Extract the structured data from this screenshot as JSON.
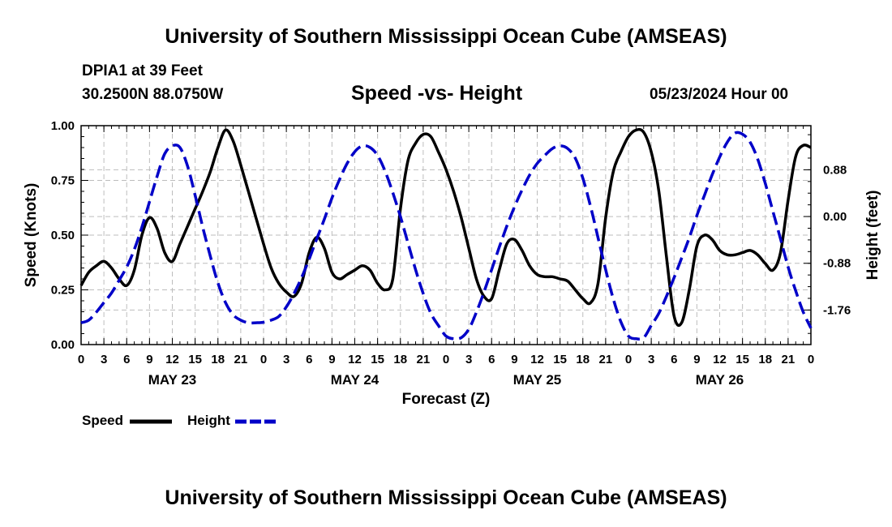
{
  "header": {
    "title": "University of Southern Mississippi Ocean Cube (AMSEAS)",
    "station": "DPIA1 at 39 Feet",
    "coords": "30.2500N  88.0750W",
    "subtitle": "Speed -vs- Height",
    "datetime": "05/23/2024 Hour 00"
  },
  "footer": {
    "title": "University of Southern Mississippi Ocean Cube (AMSEAS)"
  },
  "legend": {
    "speed_label": "Speed",
    "height_label": "Height"
  },
  "chart_data": {
    "type": "line",
    "title": "Speed -vs- Height",
    "xlabel": "Forecast (Z)",
    "ylabel": "Speed (Knots)",
    "y2label": "Height (feet)",
    "xlim": [
      0,
      96
    ],
    "ylim": [
      0,
      1.0
    ],
    "y2lim": [
      -2.41,
      1.71
    ],
    "x_tick_hours": [
      0,
      3,
      6,
      9,
      12,
      15,
      18,
      21,
      24,
      27,
      30,
      33,
      36,
      39,
      42,
      45,
      48,
      51,
      54,
      57,
      60,
      63,
      66,
      69,
      72,
      75,
      78,
      81,
      84,
      87,
      90,
      93,
      96
    ],
    "x_tick_labels": [
      "0",
      "3",
      "6",
      "9",
      "12",
      "15",
      "18",
      "21",
      "0",
      "3",
      "6",
      "9",
      "12",
      "15",
      "18",
      "21",
      "0",
      "3",
      "6",
      "9",
      "12",
      "15",
      "18",
      "21",
      "0",
      "3",
      "6",
      "9",
      "12",
      "15",
      "18",
      "21",
      "0"
    ],
    "date_labels": [
      {
        "hour": 12,
        "label": "MAY 23"
      },
      {
        "hour": 36,
        "label": "MAY 24"
      },
      {
        "hour": 60,
        "label": "MAY 25"
      },
      {
        "hour": 84,
        "label": "MAY 26"
      }
    ],
    "y_ticks": [
      {
        "value": 0.0,
        "label": "0.00"
      },
      {
        "value": 0.25,
        "label": "0.25"
      },
      {
        "value": 0.5,
        "label": "0.50"
      },
      {
        "value": 0.75,
        "label": "0.75"
      },
      {
        "value": 1.0,
        "label": "1.00"
      }
    ],
    "y2_ticks": [
      {
        "value": 0.88,
        "label": "0.88"
      },
      {
        "value": 0.0,
        "label": "0.00"
      },
      {
        "value": -0.88,
        "label": "-0.88"
      },
      {
        "value": -1.76,
        "label": "-1.76"
      }
    ],
    "series": [
      {
        "name": "Speed",
        "axis": "left",
        "color": "#000000",
        "dash": "none",
        "x": [
          0,
          1,
          2,
          3,
          4,
          5,
          6,
          7,
          8,
          9,
          10,
          11,
          12,
          13,
          14,
          15,
          16,
          17,
          18,
          19,
          20,
          21,
          22,
          23,
          24,
          25,
          26,
          27,
          28,
          29,
          30,
          31,
          32,
          33,
          34,
          35,
          36,
          37,
          38,
          39,
          40,
          41,
          42,
          43,
          44,
          45,
          46,
          47,
          48,
          49,
          50,
          51,
          52,
          53,
          54,
          55,
          56,
          57,
          58,
          59,
          60,
          61,
          62,
          63,
          64,
          65,
          66,
          67,
          68,
          69,
          70,
          71,
          72,
          73,
          74,
          75,
          76,
          77,
          78,
          79,
          80,
          81,
          82,
          83,
          84,
          85,
          86,
          87,
          88,
          89,
          90,
          91,
          92,
          93,
          94,
          95,
          96
        ],
        "values": [
          0.27,
          0.33,
          0.36,
          0.38,
          0.35,
          0.3,
          0.27,
          0.34,
          0.5,
          0.58,
          0.53,
          0.42,
          0.38,
          0.46,
          0.54,
          0.62,
          0.7,
          0.79,
          0.9,
          0.98,
          0.93,
          0.82,
          0.7,
          0.58,
          0.46,
          0.35,
          0.28,
          0.24,
          0.22,
          0.28,
          0.42,
          0.49,
          0.44,
          0.33,
          0.3,
          0.32,
          0.34,
          0.36,
          0.34,
          0.28,
          0.25,
          0.3,
          0.62,
          0.84,
          0.92,
          0.96,
          0.95,
          0.88,
          0.8,
          0.7,
          0.58,
          0.44,
          0.3,
          0.22,
          0.21,
          0.34,
          0.46,
          0.48,
          0.43,
          0.36,
          0.32,
          0.31,
          0.31,
          0.3,
          0.29,
          0.25,
          0.21,
          0.19,
          0.28,
          0.58,
          0.79,
          0.88,
          0.95,
          0.98,
          0.97,
          0.88,
          0.7,
          0.4,
          0.13,
          0.1,
          0.25,
          0.45,
          0.5,
          0.48,
          0.43,
          0.41,
          0.41,
          0.42,
          0.43,
          0.41,
          0.37,
          0.34,
          0.42,
          0.66,
          0.86,
          0.91,
          0.9
        ]
      },
      {
        "name": "Height",
        "axis": "right",
        "color": "#0000c8",
        "dash": "dashed",
        "x": [
          0,
          1,
          2,
          3,
          4,
          5,
          6,
          7,
          8,
          9,
          10,
          11,
          12,
          13,
          14,
          15,
          16,
          17,
          18,
          19,
          20,
          21,
          22,
          23,
          24,
          25,
          26,
          27,
          28,
          29,
          30,
          31,
          32,
          33,
          34,
          35,
          36,
          37,
          38,
          39,
          40,
          41,
          42,
          43,
          44,
          45,
          46,
          47,
          48,
          49,
          50,
          51,
          52,
          53,
          54,
          55,
          56,
          57,
          58,
          59,
          60,
          61,
          62,
          63,
          64,
          65,
          66,
          67,
          68,
          69,
          70,
          71,
          72,
          73,
          74,
          75,
          76,
          77,
          78,
          79,
          80,
          81,
          82,
          83,
          84,
          85,
          86,
          87,
          88,
          89,
          90,
          91,
          92,
          93,
          94,
          95,
          96
        ],
        "values": [
          -2.0,
          -1.95,
          -1.8,
          -1.62,
          -1.44,
          -1.2,
          -0.95,
          -0.62,
          -0.2,
          0.28,
          0.76,
          1.18,
          1.33,
          1.3,
          0.95,
          0.4,
          -0.2,
          -0.75,
          -1.25,
          -1.62,
          -1.85,
          -1.95,
          -2.0,
          -2.0,
          -1.99,
          -1.95,
          -1.88,
          -1.7,
          -1.45,
          -1.15,
          -0.8,
          -0.42,
          -0.05,
          0.35,
          0.7,
          1.0,
          1.22,
          1.33,
          1.3,
          1.15,
          0.85,
          0.45,
          0.0,
          -0.5,
          -1.0,
          -1.45,
          -1.82,
          -2.05,
          -2.25,
          -2.3,
          -2.28,
          -2.12,
          -1.8,
          -1.42,
          -1.0,
          -0.58,
          -0.18,
          0.18,
          0.5,
          0.78,
          1.0,
          1.15,
          1.28,
          1.33,
          1.28,
          1.1,
          0.72,
          0.2,
          -0.4,
          -1.0,
          -1.55,
          -1.98,
          -2.25,
          -2.3,
          -2.28,
          -2.05,
          -1.82,
          -1.5,
          -1.15,
          -0.78,
          -0.4,
          0.02,
          0.4,
          0.78,
          1.12,
          1.4,
          1.57,
          1.55,
          1.4,
          1.08,
          0.62,
          0.1,
          -0.42,
          -0.95,
          -1.4,
          -1.8,
          -2.1
        ]
      }
    ],
    "legend_position": "below-left",
    "grid": true
  }
}
